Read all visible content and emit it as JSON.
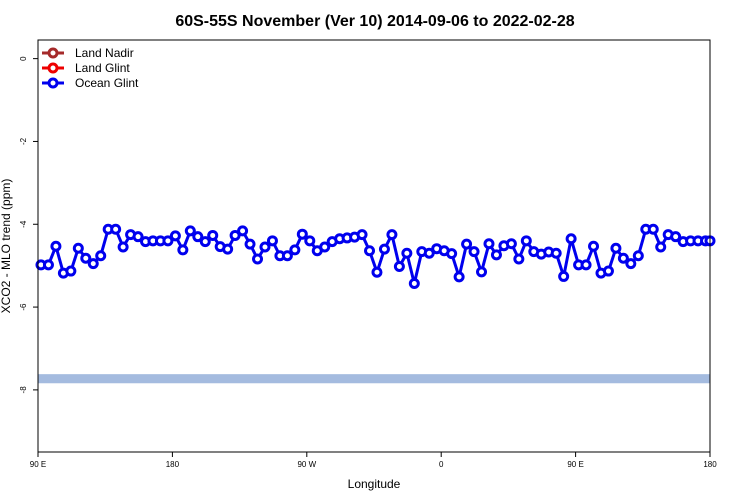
{
  "chart_data": {
    "type": "line",
    "title": "60S-55S November (Ver 10)   2014-09-06 to 2022-02-28",
    "xlabel": "Longitude",
    "ylabel": "XCO2 - MLO trend (ppm)",
    "xlim": [
      90,
      540
    ],
    "ylim": [
      -9.5,
      0.45
    ],
    "x_ticks": [
      {
        "value": 90,
        "label": "90 E"
      },
      {
        "value": 180,
        "label": "180"
      },
      {
        "value": 270,
        "label": "90 W"
      },
      {
        "value": 360,
        "label": "0"
      },
      {
        "value": 450,
        "label": "90 E"
      },
      {
        "value": 540,
        "label": "180"
      }
    ],
    "y_ticks": [
      {
        "value": 0,
        "label": "0"
      },
      {
        "value": -2,
        "label": "-2"
      },
      {
        "value": -4,
        "label": "-4"
      },
      {
        "value": -6,
        "label": "-6"
      },
      {
        "value": -8,
        "label": "-8"
      }
    ],
    "grid": false,
    "legend_position": "top-left",
    "band": {
      "y_low": -7.84,
      "y_high": -7.62,
      "color": "#a4bbdf"
    },
    "series": [
      {
        "name": "Land Nadir",
        "color": "#a52a2a",
        "x": [],
        "y": []
      },
      {
        "name": "Land Glint",
        "color": "#ee0000",
        "x": [],
        "y": []
      },
      {
        "name": "Ocean Glint",
        "color": "#0000ee",
        "x": [
          92,
          97,
          102,
          107,
          112,
          117,
          122,
          127,
          132,
          137,
          142,
          147,
          152,
          157,
          162,
          167,
          172,
          177,
          182,
          187,
          192,
          197,
          202,
          207,
          212,
          217,
          222,
          227,
          232,
          237,
          242,
          247,
          252,
          257,
          262,
          267,
          272,
          277,
          282,
          287,
          292,
          297,
          302,
          307,
          312,
          317,
          322,
          327,
          332,
          337,
          342,
          347,
          352,
          357,
          362,
          367,
          372,
          377,
          382,
          387,
          392,
          397,
          402,
          407,
          412,
          417,
          422,
          427,
          432,
          437,
          442,
          447,
          452,
          457,
          462,
          467,
          472,
          477,
          482,
          487,
          492,
          497,
          502,
          507,
          512,
          517,
          522,
          527,
          532,
          537,
          540
        ],
        "y": [
          -4.98,
          -4.98,
          -4.53,
          -5.18,
          -5.13,
          -4.58,
          -4.82,
          -4.95,
          -4.76,
          -4.12,
          -4.12,
          -4.55,
          -4.25,
          -4.3,
          -4.42,
          -4.4,
          -4.4,
          -4.4,
          -4.28,
          -4.62,
          -4.16,
          -4.3,
          -4.42,
          -4.27,
          -4.54,
          -4.6,
          -4.27,
          -4.16,
          -4.48,
          -4.84,
          -4.55,
          -4.4,
          -4.76,
          -4.76,
          -4.62,
          -4.24,
          -4.4,
          -4.64,
          -4.55,
          -4.42,
          -4.35,
          -4.33,
          -4.31,
          -4.25,
          -4.64,
          -5.16,
          -4.6,
          -4.25,
          -5.02,
          -4.7,
          -5.43,
          -4.66,
          -4.7,
          -4.59,
          -4.64,
          -4.71,
          -5.27,
          -4.48,
          -4.66,
          -5.15,
          -4.47,
          -4.74,
          -4.52,
          -4.47,
          -4.84,
          -4.4,
          -4.66,
          -4.72,
          -4.67,
          -4.7,
          -5.26,
          -4.35,
          -4.98,
          -4.98,
          -4.53,
          -5.18,
          -5.13,
          -4.58,
          -4.82,
          -4.95,
          -4.76,
          -4.12,
          -4.12,
          -4.55,
          -4.25,
          -4.3,
          -4.42,
          -4.4,
          -4.4,
          -4.4,
          -4.4
        ]
      }
    ]
  }
}
